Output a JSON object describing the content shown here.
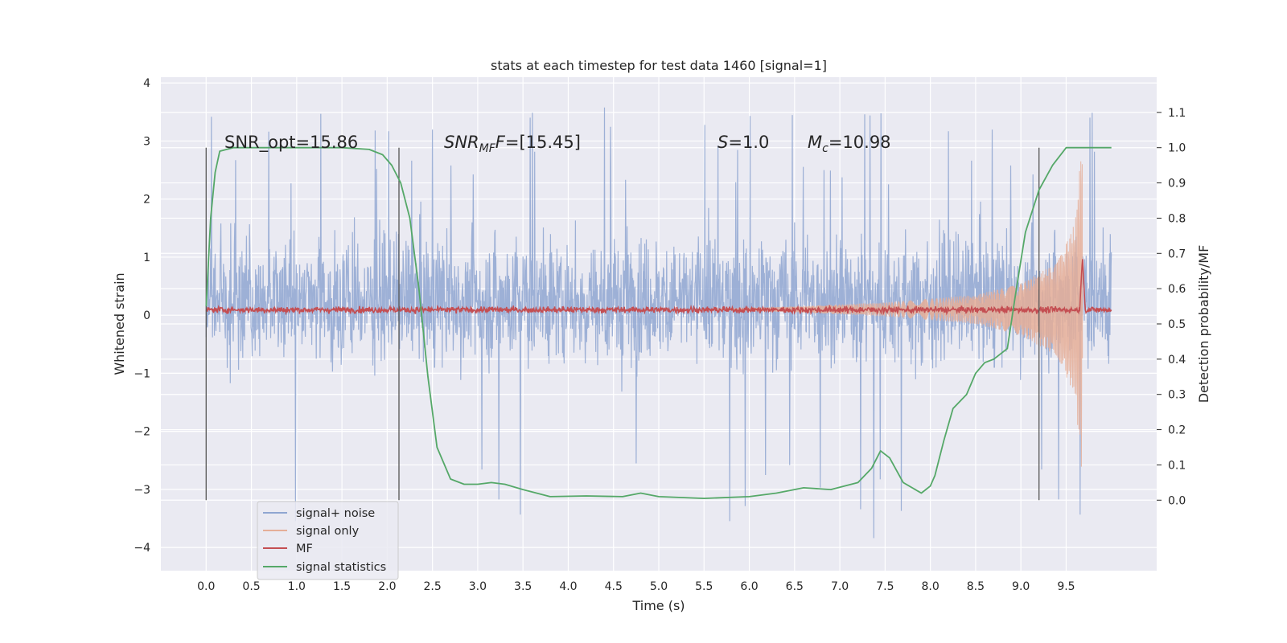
{
  "chart_data": {
    "type": "line",
    "title": "stats at each timestep for test data 1460 [signal=1]",
    "xlabel": "Time (s)",
    "ylabel_left": "Whitened strain",
    "ylabel_right": "Detection probability/MF",
    "xlim": [
      -0.5,
      10.5
    ],
    "ylim_left": [
      -4.4,
      4.1
    ],
    "ylim_right": [
      -0.2,
      1.2
    ],
    "xticks": [
      "0.0",
      "0.5",
      "1.0",
      "1.5",
      "2.0",
      "2.5",
      "3.0",
      "3.5",
      "4.0",
      "4.5",
      "5.0",
      "5.5",
      "6.0",
      "6.5",
      "7.0",
      "7.5",
      "8.0",
      "8.5",
      "9.0",
      "9.5"
    ],
    "yticks_left": [
      "4",
      "3",
      "2",
      "1",
      "0",
      "−1",
      "−2",
      "−3",
      "−4"
    ],
    "yticks_right": [
      "1.1",
      "1.0",
      "0.9",
      "0.8",
      "0.7",
      "0.6",
      "0.5",
      "0.4",
      "0.3",
      "0.2",
      "0.1",
      "0.0"
    ],
    "grid": true,
    "legend_position": "bottom-left",
    "annotations": {
      "snr_opt": "SNR_opt=15.86",
      "snr_mf_base": "SNR",
      "snr_mf_sub": "MF",
      "snr_mf_value": "=[15.45]",
      "s_base": "S",
      "s_value": "=1.0",
      "mc_base": "M",
      "mc_sub": "c",
      "mc_value": "=10.98"
    },
    "vertical_markers_s": [
      0.0,
      2.13,
      9.2
    ],
    "series": [
      {
        "name": "signal+ noise",
        "axis": "left",
        "color": "#8fa6d1",
        "t_range": [
          0.0,
          10.0
        ],
        "amplitude_envelope": {
          "typical_band": [
            -1.8,
            2.3
          ],
          "max": 3.7,
          "min": -4.0
        }
      },
      {
        "name": "signal only",
        "axis": "left",
        "color": "#e5ae98",
        "note_points": {
          "t": [
            6.5,
            7.5,
            8.5,
            9.0,
            9.4,
            9.6,
            9.68
          ],
          "half_amplitude": [
            0.05,
            0.12,
            0.25,
            0.45,
            0.8,
            1.5,
            3.0
          ]
        }
      },
      {
        "name": "MF",
        "axis": "right",
        "color": "#c44e52",
        "baseline": 0.54,
        "peak": {
          "t": 9.68,
          "value": 0.69
        }
      },
      {
        "name": "signal statistics",
        "axis": "right",
        "color": "#55a868",
        "x": [
          0.0,
          0.05,
          0.1,
          0.15,
          0.3,
          0.5,
          1.0,
          1.5,
          1.8,
          1.95,
          2.05,
          2.15,
          2.25,
          2.35,
          2.45,
          2.55,
          2.7,
          2.85,
          3.0,
          3.15,
          3.3,
          3.5,
          3.8,
          4.2,
          4.6,
          4.8,
          5.0,
          5.5,
          6.0,
          6.3,
          6.6,
          6.9,
          7.2,
          7.35,
          7.45,
          7.55,
          7.7,
          7.9,
          8.0,
          8.05,
          8.15,
          8.25,
          8.4,
          8.5,
          8.6,
          8.7,
          8.85,
          8.95,
          9.05,
          9.2,
          9.35,
          9.5,
          9.6,
          10.0
        ],
        "y": [
          0.55,
          0.8,
          0.93,
          0.99,
          1.0,
          1.0,
          1.0,
          1.0,
          0.995,
          0.98,
          0.95,
          0.9,
          0.8,
          0.6,
          0.35,
          0.15,
          0.06,
          0.045,
          0.045,
          0.05,
          0.045,
          0.03,
          0.01,
          0.012,
          0.01,
          0.02,
          0.01,
          0.005,
          0.01,
          0.02,
          0.035,
          0.03,
          0.05,
          0.09,
          0.14,
          0.12,
          0.05,
          0.02,
          0.04,
          0.07,
          0.17,
          0.26,
          0.3,
          0.36,
          0.39,
          0.4,
          0.43,
          0.6,
          0.76,
          0.88,
          0.95,
          1.0,
          1.0,
          1.0
        ]
      }
    ]
  }
}
